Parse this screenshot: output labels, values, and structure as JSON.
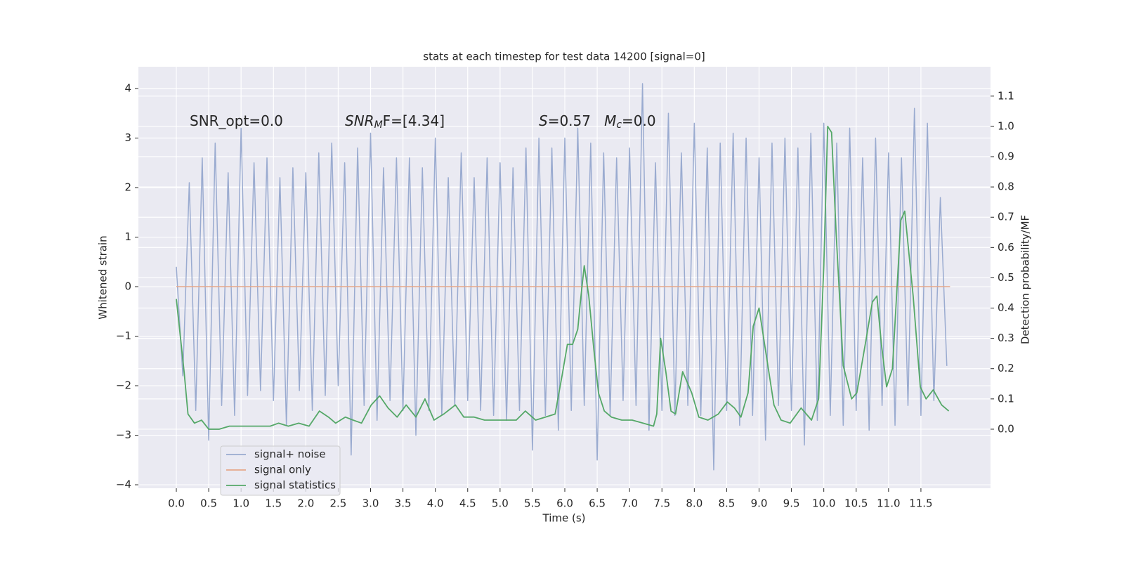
{
  "chart_data": {
    "type": "line",
    "title": "stats at each timestep for test data 14200 [signal=0]",
    "x_label": "Time (s)",
    "y_label": "Whitened strain",
    "y2_label": "Detection probability/MF",
    "xlim": [
      -0.586,
      12.575
    ],
    "ylim": [
      -4.07,
      4.44
    ],
    "y2lim": [
      -0.195,
      1.197
    ],
    "xticks": [
      {
        "value": 0,
        "label": "0.0"
      },
      0.5,
      {
        "value": 1,
        "label": "1.0"
      },
      1.5,
      {
        "value": 2,
        "label": "2.0"
      },
      2.5,
      {
        "value": 3,
        "label": "3.0"
      },
      3.5,
      {
        "value": 4,
        "label": "4.0"
      },
      4.5,
      {
        "value": 5,
        "label": "5.0"
      },
      5.5,
      {
        "value": 6,
        "label": "6.0"
      },
      6.5,
      {
        "value": 7,
        "label": "7.0"
      },
      7.5,
      {
        "value": 8,
        "label": "8.0"
      },
      8.5,
      {
        "value": 9,
        "label": "9.0"
      },
      9.5,
      {
        "value": 10,
        "label": "10.0"
      },
      10.5,
      {
        "value": 11,
        "label": "11.0"
      },
      11.5
    ],
    "yticks": [
      {
        "value": -4,
        "label": "−4"
      },
      {
        "value": -3,
        "label": "−3"
      },
      {
        "value": -2,
        "label": "−2"
      },
      {
        "value": -1,
        "label": "−1"
      },
      0,
      1,
      2,
      3,
      4
    ],
    "y2ticks": [
      {
        "value": 0,
        "label": "0.0"
      },
      0.1,
      0.2,
      0.3,
      0.4,
      0.5,
      0.6,
      0.7,
      0.8,
      0.9,
      {
        "value": 1,
        "label": "1.0"
      },
      1.1
    ],
    "grid": true,
    "legend": "lower left",
    "annotations": [
      [
        {
          "text": "SNR_opt=0.0",
          "style": "normal"
        }
      ],
      [
        {
          "text": "SNR",
          "style": "italic"
        },
        {
          "text": "M",
          "style": "italic-sub"
        },
        {
          "text": "F=[4.34]",
          "style": "normal"
        }
      ],
      [
        {
          "text": "S",
          "style": "italic"
        },
        {
          "text": "=0.57   ",
          "style": "normal"
        },
        {
          "text": "M",
          "style": "italic"
        },
        {
          "text": "c",
          "style": "italic-sub"
        },
        {
          "text": "=0.0",
          "style": "normal"
        }
      ]
    ],
    "series": [
      {
        "name": "signal+ noise",
        "color": "#9aabd0",
        "x": [
          0,
          0.1,
          0.2,
          0.3,
          0.4,
          0.5,
          0.6,
          0.7,
          0.8,
          0.9,
          1,
          1.1,
          1.2,
          1.3,
          1.4,
          1.5,
          1.6,
          1.7,
          1.8,
          1.9,
          2,
          2.1,
          2.2,
          2.3,
          2.4,
          2.5,
          2.6,
          2.7,
          2.8,
          2.9,
          3,
          3.1,
          3.2,
          3.3,
          3.4,
          3.5,
          3.6,
          3.7,
          3.8,
          3.9,
          4,
          4.1,
          4.2,
          4.3,
          4.4,
          4.5,
          4.6,
          4.7,
          4.8,
          4.9,
          5,
          5.1,
          5.2,
          5.3,
          5.4,
          5.5,
          5.6,
          5.7,
          5.8,
          5.9,
          6,
          6.1,
          6.2,
          6.3,
          6.4,
          6.5,
          6.6,
          6.7,
          6.8,
          6.9,
          7,
          7.1,
          7.2,
          7.3,
          7.4,
          7.5,
          7.6,
          7.7,
          7.8,
          7.9,
          8,
          8.1,
          8.2,
          8.3,
          8.4,
          8.5,
          8.6,
          8.7,
          8.8,
          8.9,
          9,
          9.1,
          9.2,
          9.3,
          9.4,
          9.5,
          9.6,
          9.7,
          9.8,
          9.9,
          10,
          10.1,
          10.2,
          10.3,
          10.4,
          10.5,
          10.6,
          10.7,
          10.8,
          10.9,
          11,
          11.1,
          11.2,
          11.3,
          11.4,
          11.5,
          11.6,
          11.7,
          11.8,
          11.9
        ],
        "values": [
          0.4,
          -1.8,
          2.1,
          -2.5,
          2.6,
          -3.1,
          2.9,
          -2.4,
          2.3,
          -2.6,
          3.2,
          -2.2,
          2.5,
          -2.1,
          2.6,
          -2.3,
          2.2,
          -2.8,
          2.4,
          -2.1,
          2.3,
          -2.5,
          2.7,
          -2.2,
          2.9,
          -2.0,
          2.5,
          -3.4,
          2.8,
          -2.4,
          3.1,
          -2.7,
          2.4,
          -2.3,
          2.6,
          -2.5,
          2.6,
          -3.0,
          2.4,
          -2.5,
          3.0,
          -2.6,
          2.2,
          -2.4,
          2.7,
          -2.3,
          2.2,
          -2.5,
          2.6,
          -2.6,
          2.5,
          -2.7,
          2.4,
          -2.5,
          2.8,
          -3.3,
          3.0,
          -2.6,
          2.8,
          -2.9,
          3.0,
          -2.5,
          3.2,
          -2.4,
          2.9,
          -3.5,
          2.7,
          -2.6,
          2.6,
          -2.3,
          2.8,
          -2.4,
          4.1,
          -2.9,
          2.5,
          -2.5,
          3.5,
          -2.6,
          2.7,
          -2.4,
          3.3,
          -2.6,
          2.8,
          -3.7,
          2.9,
          -2.5,
          3.1,
          -2.8,
          3.0,
          -2.6,
          2.6,
          -3.1,
          2.9,
          -2.4,
          3.0,
          -2.5,
          2.8,
          -3.2,
          3.1,
          -2.7,
          3.3,
          -2.6,
          2.9,
          -2.8,
          3.2,
          -2.5,
          2.6,
          -2.9,
          3.0,
          -2.4,
          2.7,
          -2.8,
          2.6,
          -2.4,
          3.6,
          -2.6,
          3.3,
          -2.3,
          1.8,
          -1.6
        ]
      },
      {
        "name": "signal only",
        "color": "#e6a88a",
        "x": [
          0,
          11.95
        ],
        "values": [
          0,
          0
        ]
      },
      {
        "name": "signal statistics",
        "color": "#55a868",
        "axis": "y2",
        "x": [
          0,
          0.12,
          0.18,
          0.28,
          0.39,
          0.5,
          0.66,
          0.82,
          1.02,
          1.24,
          1.45,
          1.58,
          1.73,
          1.89,
          2.05,
          2.21,
          2.35,
          2.46,
          2.61,
          2.73,
          2.86,
          3.01,
          3.14,
          3.27,
          3.41,
          3.55,
          3.7,
          3.84,
          3.98,
          4.13,
          4.31,
          4.44,
          4.6,
          4.76,
          4.93,
          5.09,
          5.25,
          5.39,
          5.55,
          5.7,
          5.85,
          5.96,
          6.04,
          6.12,
          6.2,
          6.24,
          6.3,
          6.37,
          6.45,
          6.52,
          6.61,
          6.72,
          6.88,
          7.04,
          7.21,
          7.37,
          7.42,
          7.48,
          7.56,
          7.64,
          7.71,
          7.82,
          7.96,
          8.07,
          8.21,
          8.37,
          8.51,
          8.62,
          8.72,
          8.83,
          8.91,
          9,
          9.1,
          9.23,
          9.34,
          9.48,
          9.65,
          9.81,
          9.92,
          10,
          10.06,
          10.12,
          10.19,
          10.3,
          10.43,
          10.51,
          10.64,
          10.75,
          10.82,
          10.89,
          10.97,
          11.06,
          11.19,
          11.25,
          11.38,
          11.49,
          11.58,
          11.69,
          11.82,
          11.93
        ],
        "values": [
          0.43,
          0.19,
          0.05,
          0.02,
          0.03,
          0,
          0,
          0.01,
          0.01,
          0.01,
          0.01,
          0.02,
          0.01,
          0.02,
          0.01,
          0.06,
          0.04,
          0.02,
          0.04,
          0.03,
          0.02,
          0.08,
          0.11,
          0.07,
          0.04,
          0.08,
          0.04,
          0.1,
          0.03,
          0.05,
          0.08,
          0.04,
          0.04,
          0.03,
          0.03,
          0.03,
          0.03,
          0.06,
          0.03,
          0.04,
          0.05,
          0.18,
          0.28,
          0.28,
          0.33,
          0.42,
          0.54,
          0.44,
          0.26,
          0.12,
          0.06,
          0.04,
          0.03,
          0.03,
          0.02,
          0.01,
          0.05,
          0.3,
          0.19,
          0.06,
          0.05,
          0.19,
          0.12,
          0.04,
          0.03,
          0.05,
          0.09,
          0.07,
          0.04,
          0.12,
          0.34,
          0.4,
          0.26,
          0.08,
          0.03,
          0.02,
          0.07,
          0.03,
          0.1,
          0.54,
          1,
          0.98,
          0.65,
          0.21,
          0.1,
          0.12,
          0.28,
          0.42,
          0.44,
          0.28,
          0.14,
          0.2,
          0.69,
          0.72,
          0.44,
          0.14,
          0.1,
          0.13,
          0.08,
          0.06
        ]
      }
    ]
  }
}
